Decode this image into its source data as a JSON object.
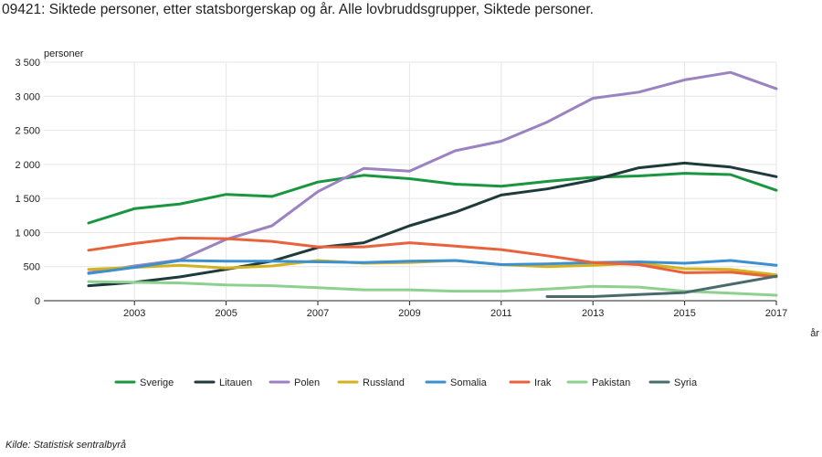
{
  "chart_data": {
    "type": "line",
    "title": "09421: Siktede personer, etter statsborgerskap og år. Alle lovbruddsgrupper, Siktede personer.",
    "ylabel": "personer",
    "xlabel": "år",
    "ylim": [
      0,
      3500
    ],
    "yticks": [
      0,
      500,
      1000,
      1500,
      2000,
      2500,
      3000,
      3500
    ],
    "ytick_labels": [
      "0",
      "500",
      "1 000",
      "1 500",
      "2 000",
      "2 500",
      "3 000",
      "3 500"
    ],
    "xlim": [
      2002,
      2017
    ],
    "xticks": [
      2003,
      2005,
      2007,
      2009,
      2011,
      2013,
      2015,
      2017
    ],
    "xtick_labels": [
      "2003",
      "2005",
      "2007",
      "2009",
      "2011",
      "2013",
      "2015",
      "2017"
    ],
    "grid": true,
    "legend_position": "bottom",
    "x": [
      2002,
      2003,
      2004,
      2005,
      2006,
      2007,
      2008,
      2009,
      2010,
      2011,
      2012,
      2013,
      2014,
      2015,
      2016,
      2017
    ],
    "series": [
      {
        "name": "Sverige",
        "color": "#1a9641",
        "values": [
          1140,
          1350,
          1420,
          1560,
          1530,
          1740,
          1840,
          1790,
          1710,
          1680,
          1750,
          1810,
          1830,
          1870,
          1850,
          1620
        ]
      },
      {
        "name": "Litauen",
        "color": "#1e3a3a",
        "values": [
          220,
          270,
          350,
          460,
          580,
          780,
          850,
          1100,
          1300,
          1550,
          1640,
          1770,
          1950,
          2020,
          1960,
          1820
        ]
      },
      {
        "name": "Polen",
        "color": "#9b82c0",
        "values": [
          410,
          510,
          600,
          900,
          1100,
          1600,
          1940,
          1900,
          2200,
          2340,
          2620,
          2970,
          3060,
          3240,
          3350,
          3110
        ]
      },
      {
        "name": "Russland",
        "color": "#d4b21f",
        "values": [
          460,
          490,
          520,
          480,
          510,
          590,
          550,
          560,
          590,
          530,
          500,
          520,
          550,
          470,
          460,
          380
        ]
      },
      {
        "name": "Somalia",
        "color": "#3d90cf",
        "values": [
          400,
          490,
          590,
          580,
          580,
          570,
          560,
          580,
          590,
          530,
          540,
          560,
          570,
          550,
          590,
          520
        ]
      },
      {
        "name": "Irak",
        "color": "#e8633c",
        "values": [
          740,
          840,
          920,
          910,
          870,
          790,
          790,
          850,
          800,
          750,
          660,
          560,
          530,
          410,
          420,
          350
        ]
      },
      {
        "name": "Pakistan",
        "color": "#8ed08f",
        "values": [
          280,
          270,
          260,
          230,
          220,
          190,
          160,
          160,
          140,
          140,
          170,
          210,
          200,
          140,
          110,
          80
        ]
      },
      {
        "name": "Syria",
        "color": "#4a6b6b",
        "values": [
          null,
          null,
          null,
          null,
          null,
          null,
          null,
          null,
          null,
          null,
          60,
          60,
          90,
          120,
          240,
          360
        ]
      }
    ]
  },
  "source": "Kilde:  Statistisk sentralbyrå"
}
